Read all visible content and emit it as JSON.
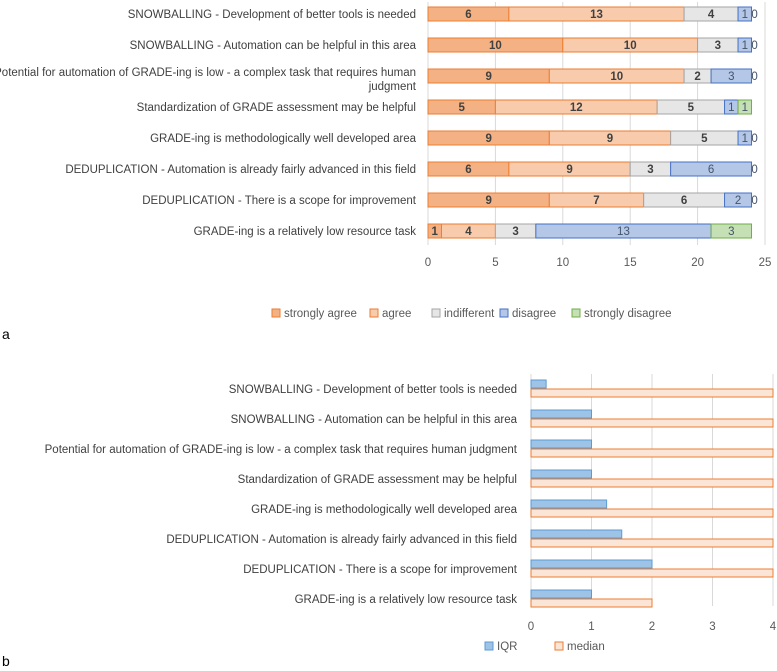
{
  "chart_data": [
    {
      "type": "bar",
      "orientation": "horizontal",
      "stacked": true,
      "panel_label": "a",
      "categories": [
        "SNOWBALLING - Development of better tools is needed",
        "SNOWBALLING - Automation can be helpful in this area",
        "Potential for automation of GRADE-ing is low - a complex task that requires human judgment",
        "Standardization of GRADE assessment may be helpful",
        "GRADE-ing is methodologically well developed area",
        "DEDUPLICATION - Automation is already fairly advanced in this field",
        "DEDUPLICATION - There is a scope for improvement",
        "GRADE-ing is a relatively low resource task"
      ],
      "series": [
        {
          "name": "strongly agree",
          "color": "#F4B183",
          "values": [
            6,
            10,
            9,
            5,
            9,
            6,
            9,
            1
          ]
        },
        {
          "name": "agree",
          "color": "#F8CBAD",
          "values": [
            13,
            10,
            10,
            12,
            9,
            9,
            7,
            4
          ]
        },
        {
          "name": "indifferent",
          "color": "#E7E6E6",
          "values": [
            4,
            3,
            2,
            5,
            5,
            3,
            6,
            3
          ]
        },
        {
          "name": "disagree",
          "color": "#B4C7E7",
          "values": [
            1,
            1,
            3,
            1,
            1,
            6,
            2,
            13
          ]
        },
        {
          "name": "strongly disagree",
          "color": "#C5E0B4",
          "values": [
            0,
            0,
            0,
            1,
            0,
            0,
            0,
            3
          ]
        }
      ],
      "xlim": [
        0,
        25
      ],
      "xticks": [
        0,
        5,
        10,
        15,
        20,
        25
      ],
      "grid": true,
      "legend": "bottom"
    },
    {
      "type": "bar",
      "orientation": "horizontal",
      "panel_label": "b",
      "categories": [
        "SNOWBALLING - Development of better tools is needed",
        "SNOWBALLING - Automation can be helpful in this area",
        "Potential for automation of GRADE-ing is low - a complex task that requires human judgment",
        "Standardization of GRADE assessment may be helpful",
        "GRADE-ing is methodologically well developed area",
        "DEDUPLICATION - Automation is already fairly advanced in this field",
        "DEDUPLICATION - There is a scope for improvement",
        "GRADE-ing is a relatively low resource task"
      ],
      "series": [
        {
          "name": "IQR",
          "color": "#9DC3E6",
          "values": [
            0.25,
            1,
            1,
            1,
            1.25,
            1.5,
            2,
            1
          ]
        },
        {
          "name": "median",
          "color": "#FBE5D6",
          "values": [
            4,
            4,
            4,
            4,
            4,
            4,
            4,
            2
          ]
        }
      ],
      "xlim": [
        0,
        4
      ],
      "xticks": [
        0,
        1,
        2,
        3,
        4
      ],
      "grid": true,
      "legend": "bottom"
    }
  ]
}
